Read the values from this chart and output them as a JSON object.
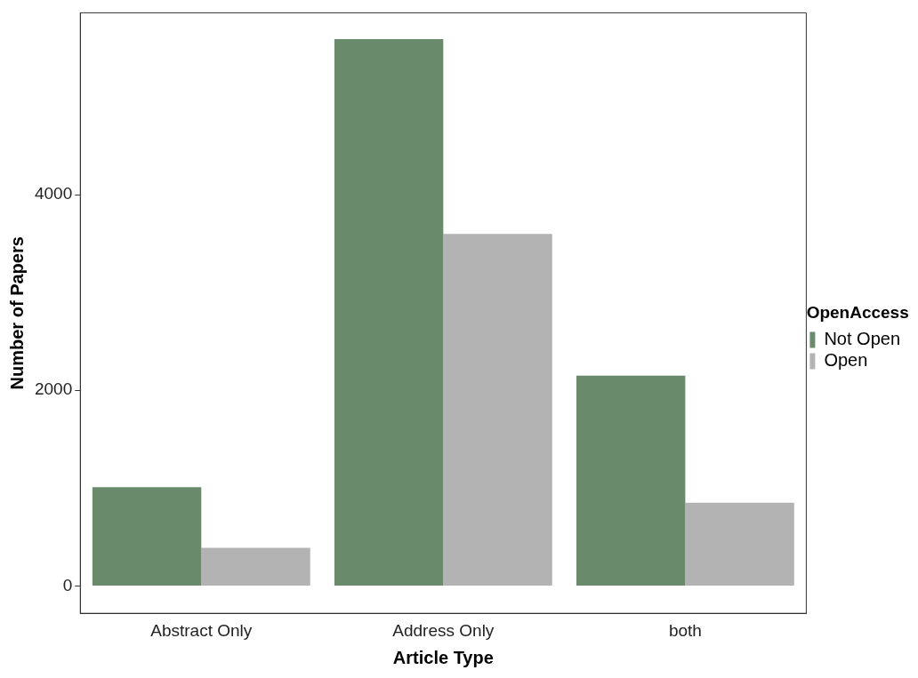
{
  "chart_data": {
    "type": "bar",
    "xlabel": "Article Type",
    "ylabel": "Number of Papers",
    "legend_title": "OpenAccess",
    "categories": [
      "Abstract Only",
      "Address Only",
      "both"
    ],
    "series": [
      {
        "name": "Not Open",
        "color": "#6a8b6b",
        "values": [
          1010,
          5590,
          2150
        ]
      },
      {
        "name": "Open",
        "color": "#b3b3b3",
        "values": [
          390,
          3600,
          850
        ]
      }
    ],
    "ylim": [
      -280,
      5860
    ],
    "yticks": [
      0,
      2000,
      4000
    ],
    "grid": false,
    "legend": "right"
  }
}
